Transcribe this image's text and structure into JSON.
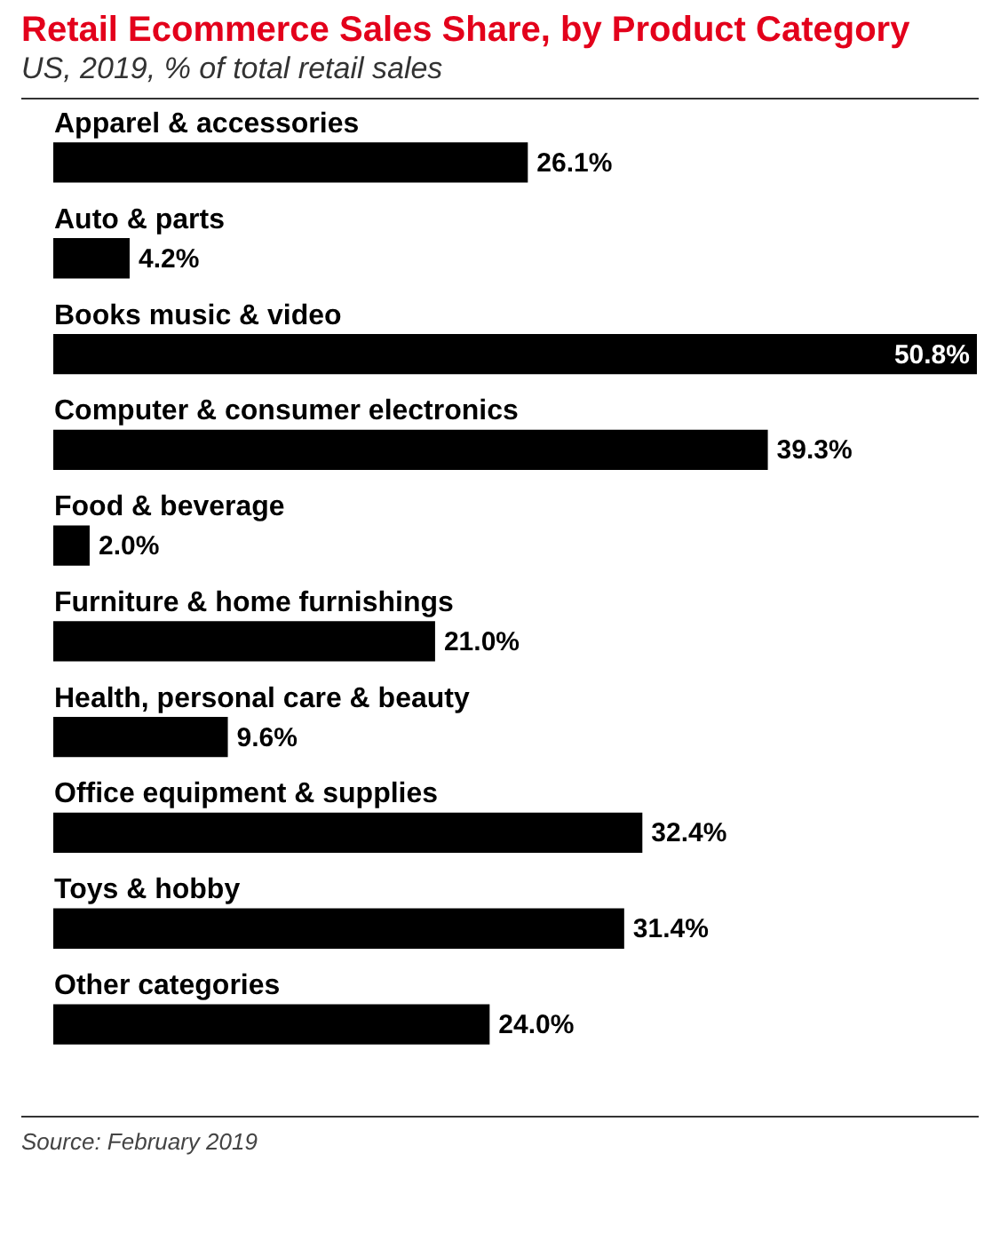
{
  "chart_data": {
    "type": "bar",
    "orientation": "horizontal",
    "title": "Retail Ecommerce Sales Share, by Product Category",
    "subtitle": "US, 2019, % of total retail sales",
    "categories": [
      "Apparel & accessories",
      "Auto & parts",
      "Books music & video",
      "Computer & consumer electronics",
      "Food & beverage",
      "Furniture & home furnishings",
      "Health, personal care & beauty",
      "Office equipment & supplies",
      "Toys & hobby",
      "Other categories"
    ],
    "values": [
      26.1,
      4.2,
      50.8,
      39.3,
      2.0,
      21.0,
      9.6,
      32.4,
      31.4,
      24.0
    ],
    "value_labels": [
      "26.1%",
      "4.2%",
      "50.8%",
      "39.3%",
      "2.0%",
      "21.0%",
      "9.6%",
      "32.4%",
      "31.4%",
      "24.0%"
    ],
    "color": "#000000",
    "annotations": [
      "Source: February 2019"
    ]
  }
}
